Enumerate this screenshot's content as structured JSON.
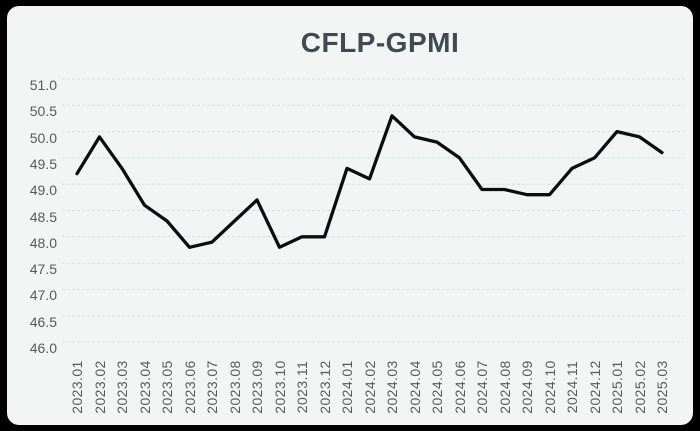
{
  "title": "CFLP-GPMI",
  "colors": {
    "background": "#000000",
    "panel": "#f3f5f4",
    "label": "#595959",
    "title_text": "#404a52"
  },
  "chart_data": {
    "type": "line",
    "title": "CFLP-GPMI",
    "series_name": "CFLP-GPMI",
    "categories": [
      "2023.01",
      "2023.02",
      "2023.03",
      "2023.04",
      "2023.05",
      "2023.06",
      "2023.07",
      "2023.08",
      "2023.09",
      "2023.10",
      "2023.11",
      "2023.12",
      "2024.01",
      "2024.02",
      "2024.03",
      "2024.04",
      "2024.05",
      "2024.06",
      "2024.07",
      "2024.08",
      "2024.09",
      "2024.10",
      "2024.11",
      "2024.12",
      "2025.01",
      "2025.02",
      "2025.03"
    ],
    "values": [
      49.2,
      49.9,
      49.3,
      48.6,
      48.3,
      47.8,
      47.9,
      48.3,
      48.7,
      47.8,
      48.0,
      48.0,
      49.3,
      49.1,
      50.3,
      49.9,
      49.8,
      49.5,
      48.9,
      48.9,
      48.8,
      48.8,
      49.3,
      49.5,
      50.0,
      49.9,
      49.6
    ],
    "xlabel": "",
    "ylabel": "",
    "ylim": [
      46.0,
      51.0
    ],
    "ytick_step": 0.5,
    "yticks": [
      "51.0",
      "50.5",
      "50.0",
      "49.5",
      "49.0",
      "48.5",
      "48.0",
      "47.5",
      "47.0",
      "46.5",
      "46.0"
    ],
    "grid": "horizontal-dashed",
    "gridline_color": "#cfdfe8",
    "line_color": "#0d0d0d",
    "legend": "none",
    "x_label_rotation": -90
  }
}
